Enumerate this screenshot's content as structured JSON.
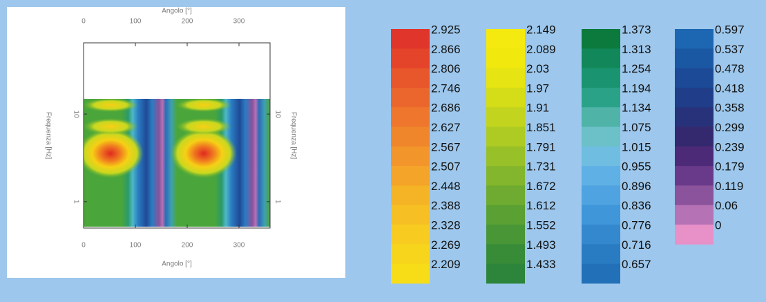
{
  "chart_data": {
    "type": "heatmap",
    "xlabel": "Angolo [°]",
    "ylabel": "Frequenza [Hz]",
    "xlim": [
      0,
      360
    ],
    "xticks": [
      0,
      100,
      200,
      300
    ],
    "ylim": [
      0.5,
      65
    ],
    "yticks": [
      1,
      10
    ],
    "log_y": true,
    "colorbars": [
      {
        "levels": [
          2.925,
          2.866,
          2.806,
          2.746,
          2.686,
          2.627,
          2.567,
          2.507,
          2.448,
          2.388,
          2.328,
          2.269,
          2.209
        ],
        "colors": [
          "#e0352a",
          "#e4442a",
          "#e8562b",
          "#eb662c",
          "#ee772d",
          "#f0862c",
          "#f2952a",
          "#f4a428",
          "#f5b326",
          "#f6c024",
          "#f7cb20",
          "#f7d51c",
          "#f6dd18"
        ]
      },
      {
        "levels": [
          2.149,
          2.089,
          2.03,
          1.97,
          1.91,
          1.851,
          1.791,
          1.731,
          1.672,
          1.612,
          1.552,
          1.493,
          1.433
        ],
        "colors": [
          "#f5ea10",
          "#f1e80e",
          "#e6e412",
          "#d5dc18",
          "#c2d41e",
          "#aecb24",
          "#98c028",
          "#83b62c",
          "#6eab30",
          "#5aa033",
          "#489636",
          "#388c38",
          "#2c853a"
        ]
      },
      {
        "levels": [
          1.373,
          1.313,
          1.254,
          1.194,
          1.134,
          1.075,
          1.015,
          0.955,
          0.896,
          0.836,
          0.776,
          0.716,
          0.657
        ],
        "colors": [
          "#0b7a3c",
          "#12885a",
          "#1a9470",
          "#2aa288",
          "#4fb3a8",
          "#6cc0c8",
          "#6fbde0",
          "#5fb0e4",
          "#4ea3e0",
          "#3f96d8",
          "#3388ce",
          "#2a7cc2",
          "#2270b8"
        ]
      },
      {
        "levels": [
          0.597,
          0.537,
          0.478,
          0.418,
          0.358,
          0.299,
          0.239,
          0.179,
          0.119,
          0.06,
          0
        ],
        "colors": [
          "#1d67b2",
          "#1b58a4",
          "#1c4a96",
          "#1f3d88",
          "#27327a",
          "#34286e",
          "#4d2a78",
          "#6a3a8a",
          "#8a539c",
          "#b572b4",
          "#e890c8"
        ]
      }
    ]
  }
}
